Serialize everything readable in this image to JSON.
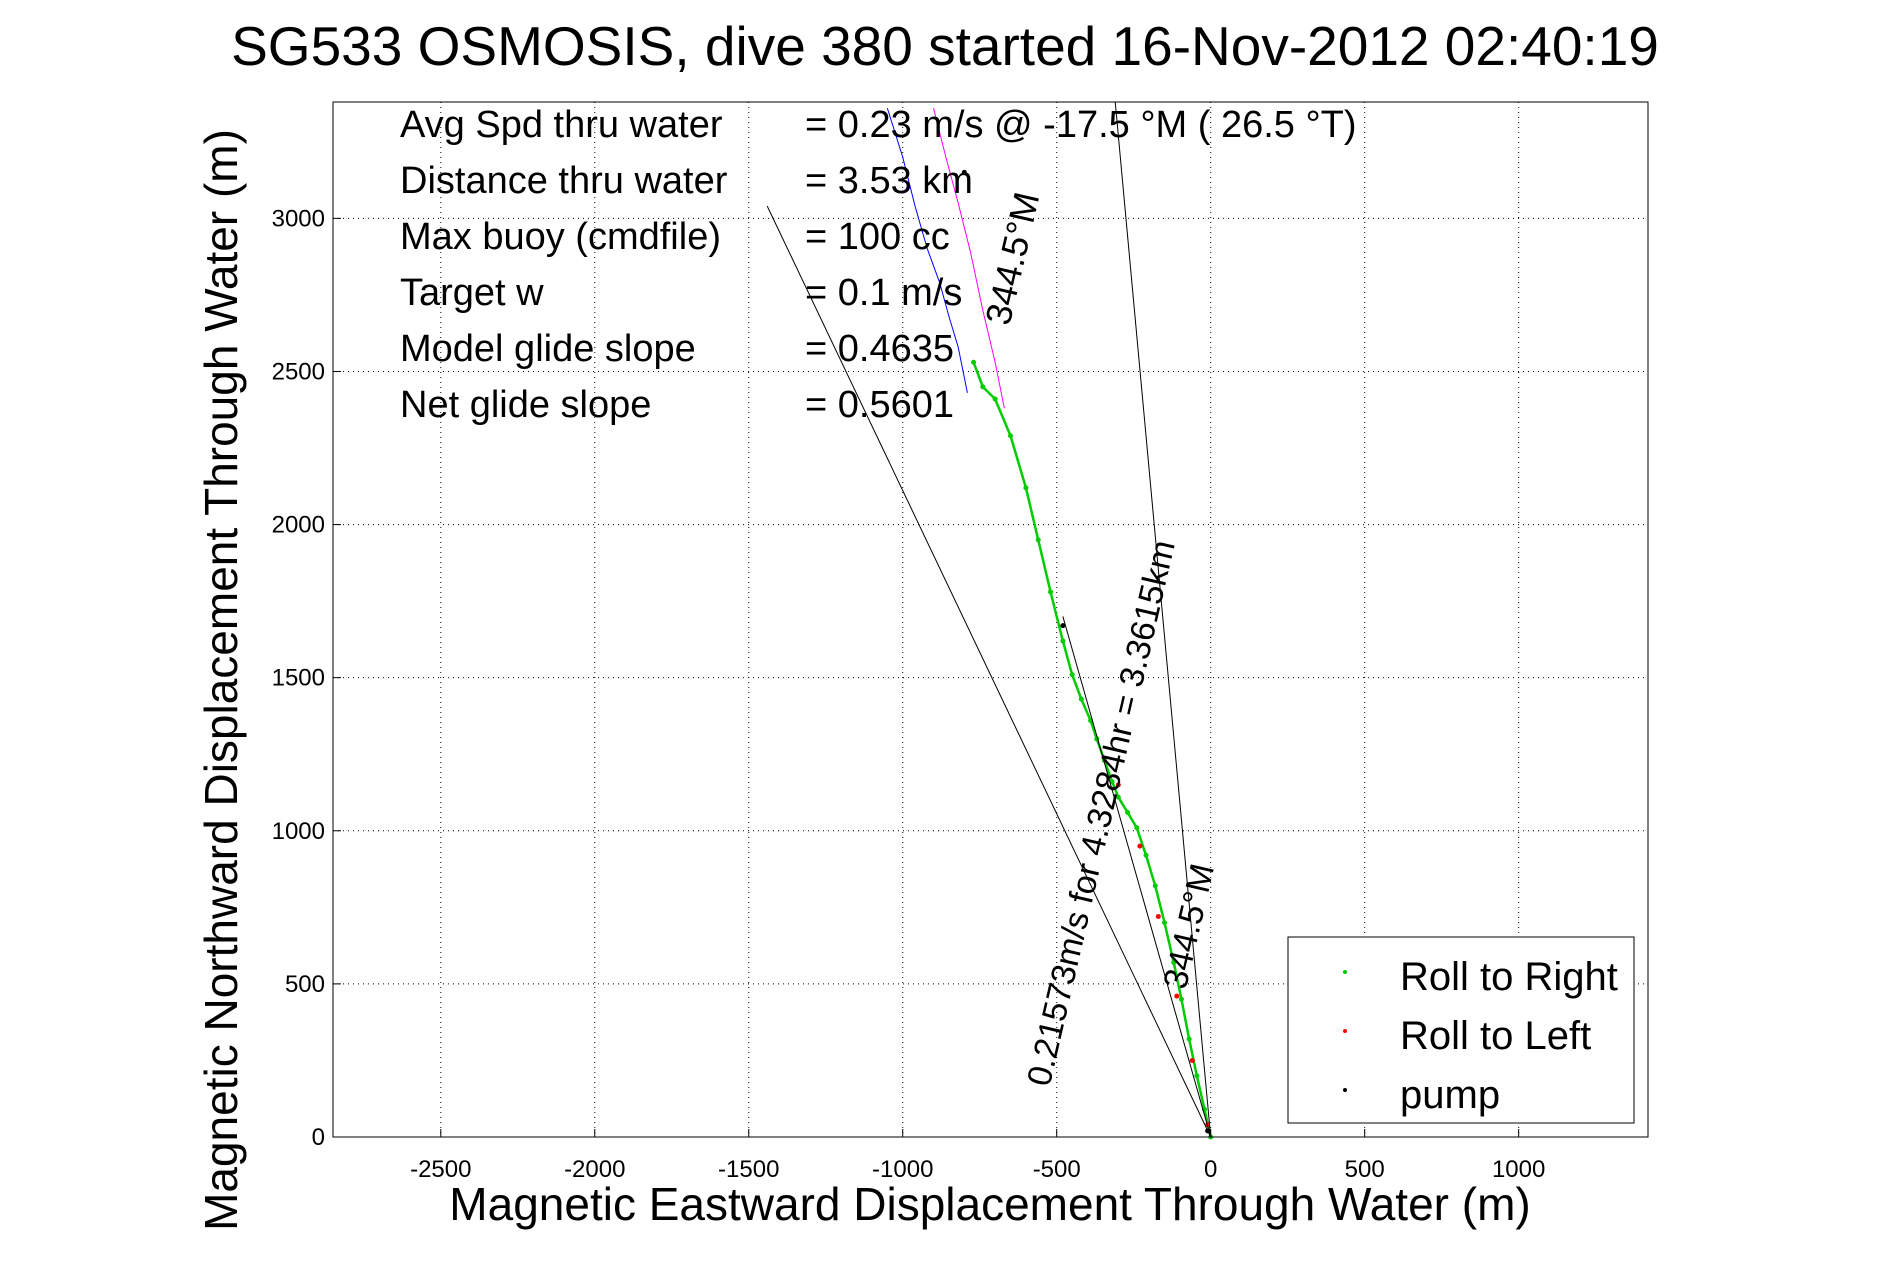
{
  "chart_data": {
    "type": "line",
    "title": "SG533 OSMOSIS, dive 380 started 16-Nov-2012 02:40:19",
    "xlabel": "Magnetic Eastward Displacement Through Water (m)",
    "ylabel": "Magnetic Northward Displacement Through Water (m)",
    "xlim": [
      -2850,
      1420
    ],
    "ylim": [
      0,
      3380
    ],
    "xticks": [
      -2500,
      -2000,
      -1500,
      -1000,
      -500,
      0,
      500,
      1000
    ],
    "yticks": [
      0,
      500,
      1000,
      1500,
      2000,
      2500,
      3000
    ],
    "grid": true,
    "legend_position": "bottom-right",
    "stats": [
      {
        "label": "Avg Spd thru water",
        "value": "=  0.23 m/s @ -17.5 °M ( 26.5 °T)"
      },
      {
        "label": "Distance thru water",
        "value": "=  3.53 km"
      },
      {
        "label": "Max buoy (cmdfile)",
        "value": "= 100 cc"
      },
      {
        "label": "Target w",
        "value": "= 0.1 m/s"
      },
      {
        "label": "Model glide slope",
        "value": "= 0.4635"
      },
      {
        "label": "Net glide slope",
        "value": "= 0.5601"
      }
    ],
    "annotations": [
      {
        "text": "0.21573m/s for 4.3284hr = 3.3615km",
        "x": -320,
        "y": 1050
      },
      {
        "text": "344.5°M",
        "x": -605,
        "y": 2860
      },
      {
        "text": "344.5°M",
        "x": -35,
        "y": 680
      }
    ],
    "series": [
      {
        "name": "Roll to Right",
        "color": "#00cc00",
        "marker": "dot",
        "x": [
          0,
          -20,
          -45,
          -70,
          -95,
          -120,
          -150,
          -180,
          -210,
          -240,
          -270,
          -300,
          -320,
          -345,
          -370,
          -390,
          -420,
          -450,
          -480,
          -520,
          -560,
          -600,
          -650,
          -700,
          -740,
          -770
        ],
        "y": [
          0,
          90,
          200,
          320,
          450,
          570,
          700,
          820,
          920,
          1010,
          1060,
          1110,
          1160,
          1230,
          1300,
          1360,
          1430,
          1510,
          1620,
          1780,
          1950,
          2120,
          2290,
          2410,
          2450,
          2530
        ]
      },
      {
        "name": "Roll to Left",
        "color": "#ff0000",
        "marker": "dot",
        "x": [
          -10,
          -60,
          -110,
          -170,
          -230,
          -300
        ],
        "y": [
          40,
          250,
          460,
          720,
          950,
          1150
        ]
      },
      {
        "name": "pump",
        "color": "#000000",
        "marker": "dot",
        "x": [
          -10,
          -480,
          -800
        ],
        "y": [
          20,
          1670,
          3150
        ]
      },
      {
        "name": "",
        "color": "#0000ff",
        "marker": "line",
        "x": [
          -1050,
          -1000,
          -960,
          -920,
          -880,
          -850,
          -820,
          -790
        ],
        "y": [
          3360,
          3200,
          3040,
          2900,
          2790,
          2680,
          2580,
          2430
        ]
      },
      {
        "name": "",
        "color": "#ff00ff",
        "marker": "line",
        "x": [
          -900,
          -860,
          -820,
          -780,
          -740,
          -700,
          -670
        ],
        "y": [
          3360,
          3200,
          3050,
          2890,
          2700,
          2530,
          2380
        ]
      },
      {
        "name": "",
        "color": "#000000",
        "marker": "line",
        "x": [
          -1440,
          0
        ],
        "y": [
          3040,
          0
        ]
      },
      {
        "name": "",
        "color": "#000000",
        "marker": "line",
        "x": [
          -310,
          0
        ],
        "y": [
          3380,
          0
        ]
      },
      {
        "name": "",
        "color": "#000000",
        "marker": "line",
        "x": [
          -480,
          0
        ],
        "y": [
          1700,
          0
        ]
      }
    ]
  }
}
